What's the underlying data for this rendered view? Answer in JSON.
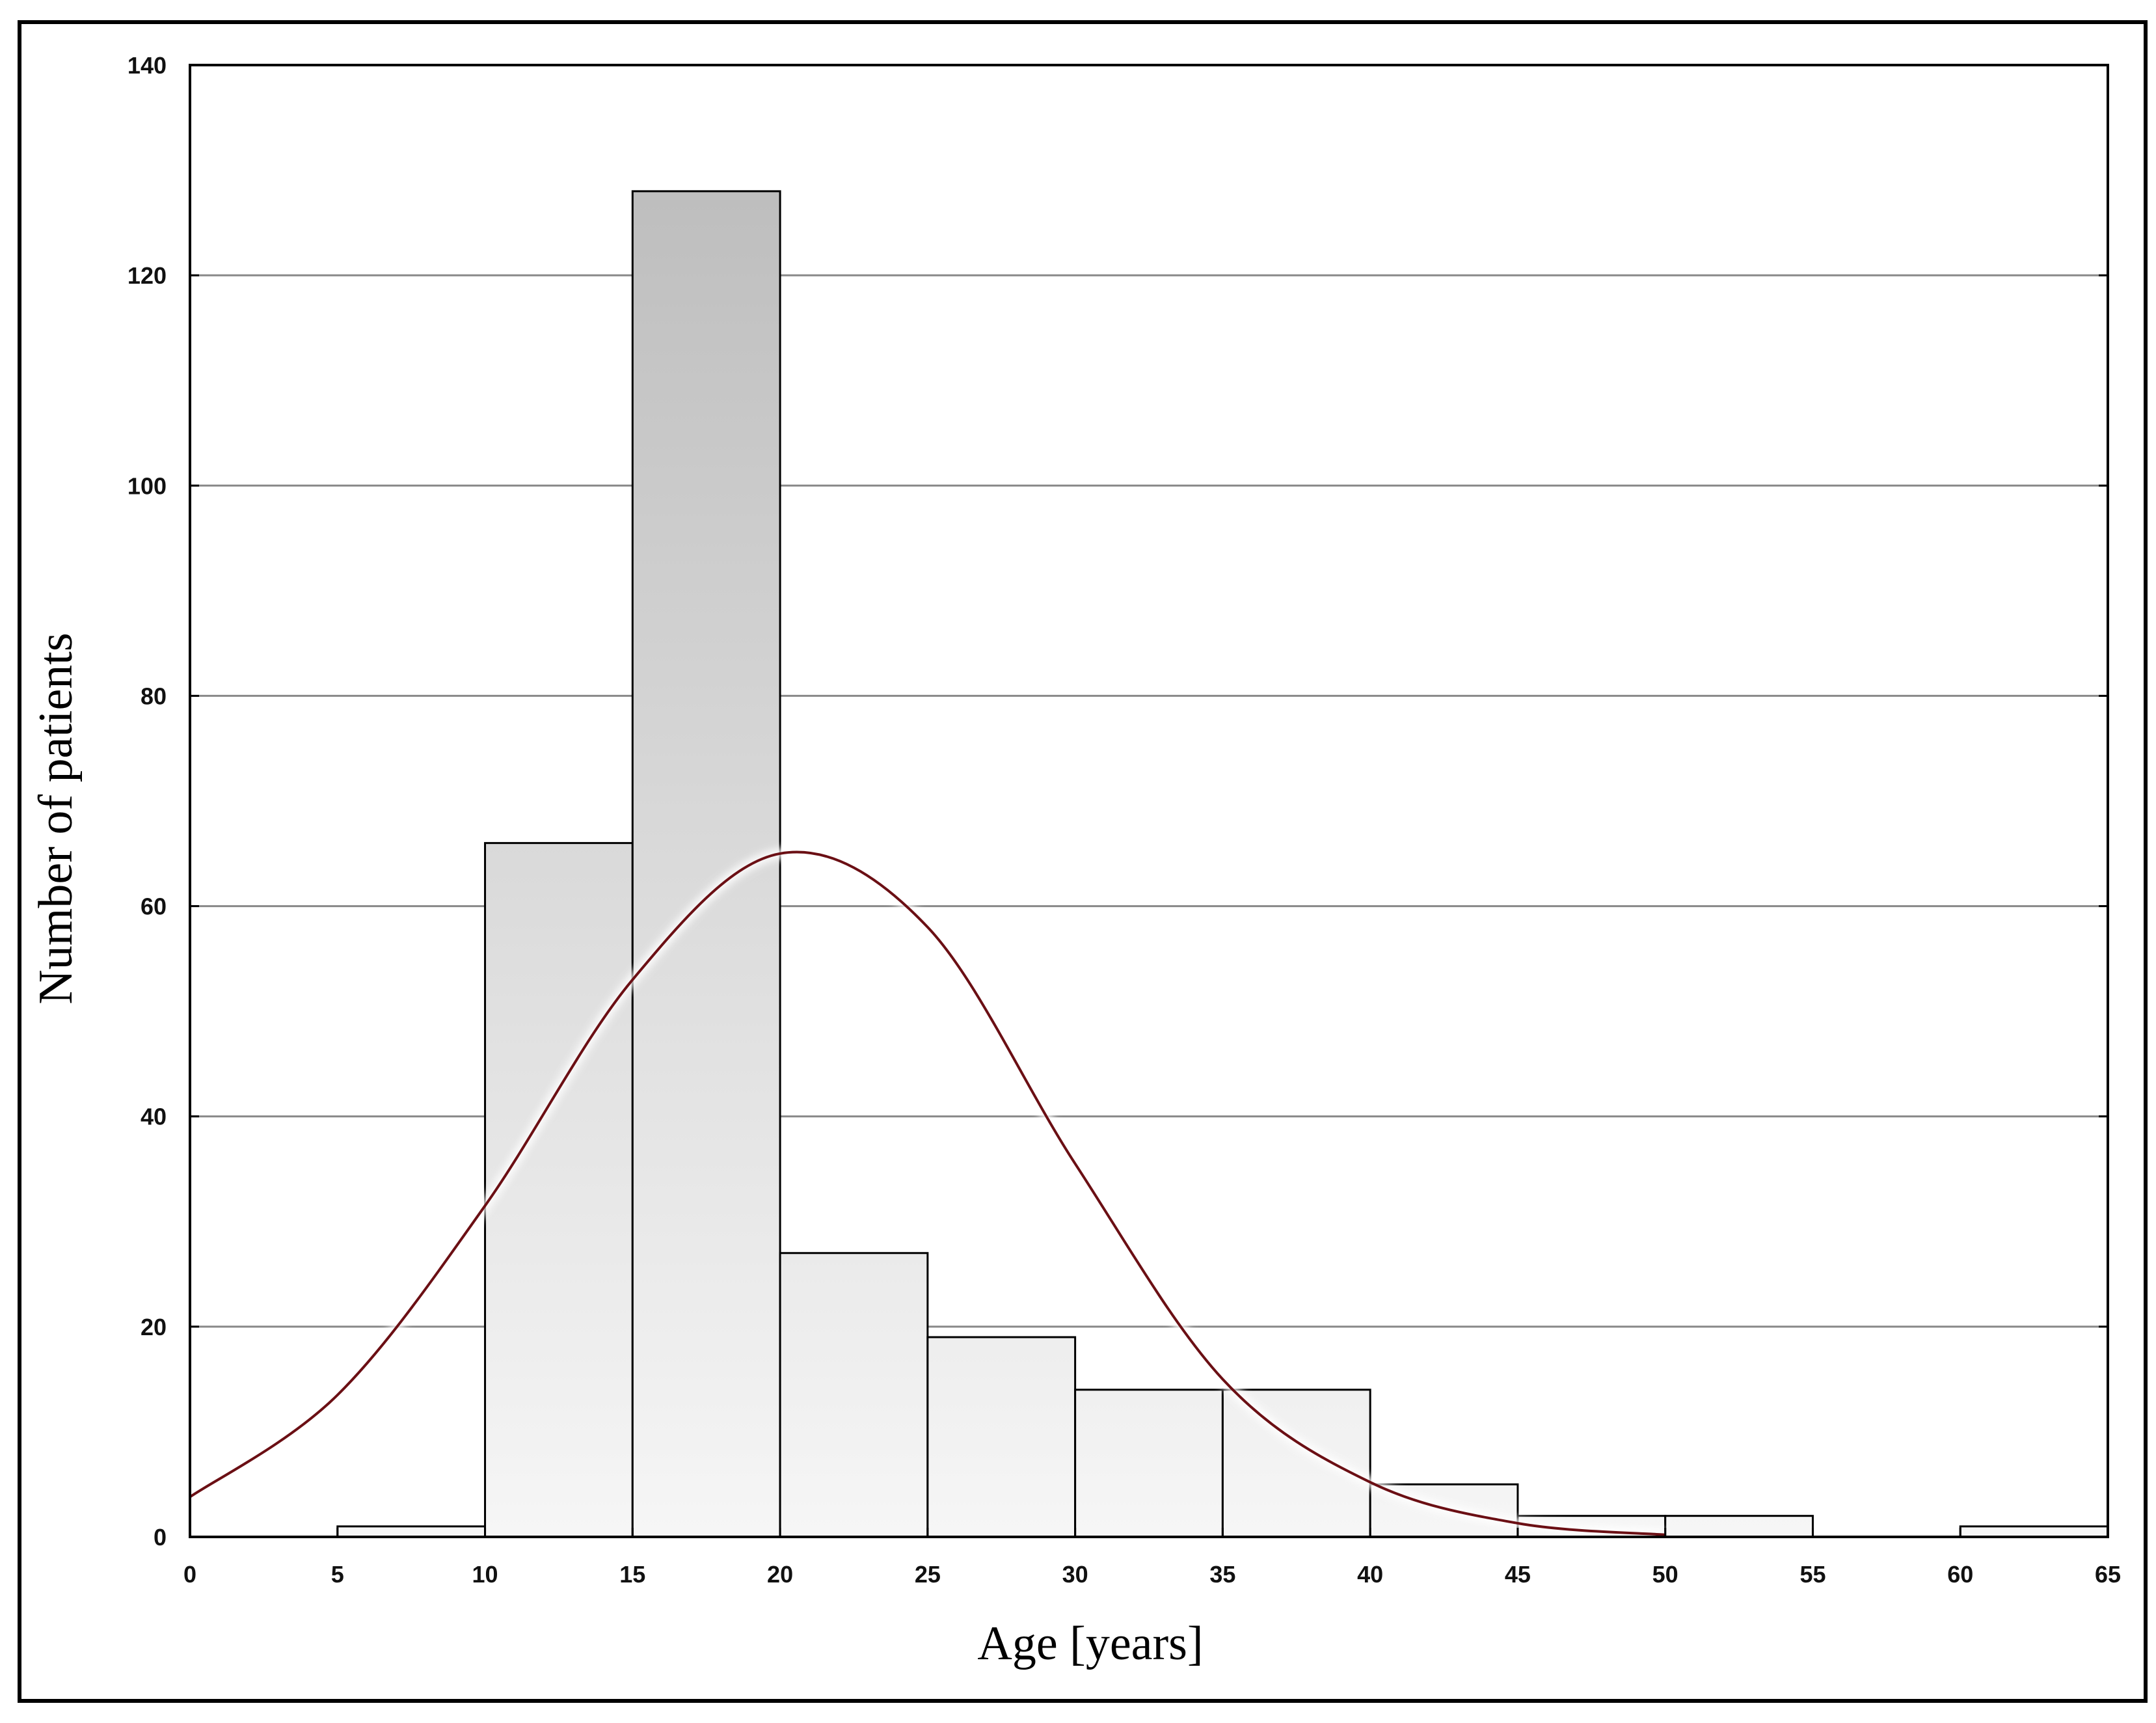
{
  "chart_data": {
    "type": "bar",
    "subtype": "histogram",
    "title": "",
    "xlabel": "Age [years]",
    "ylabel": "Number of patients",
    "xlim": [
      0,
      65
    ],
    "ylim": [
      0,
      140
    ],
    "x_ticks": [
      "0",
      "5",
      "10",
      "15",
      "20",
      "25",
      "30",
      "35",
      "40",
      "45",
      "50",
      "55",
      "60",
      "65"
    ],
    "y_ticks": [
      "0",
      "20",
      "40",
      "60",
      "80",
      "100",
      "120",
      "140"
    ],
    "bins": [
      {
        "from": 5,
        "to": 10,
        "value": 1
      },
      {
        "from": 10,
        "to": 15,
        "value": 66
      },
      {
        "from": 15,
        "to": 20,
        "value": 128
      },
      {
        "from": 20,
        "to": 25,
        "value": 27
      },
      {
        "from": 25,
        "to": 30,
        "value": 19
      },
      {
        "from": 30,
        "to": 35,
        "value": 14
      },
      {
        "from": 35,
        "to": 40,
        "value": 14
      },
      {
        "from": 40,
        "to": 45,
        "value": 5
      },
      {
        "from": 45,
        "to": 50,
        "value": 2
      },
      {
        "from": 50,
        "to": 55,
        "value": 2
      },
      {
        "from": 55,
        "to": 60,
        "value": 0
      },
      {
        "from": 60,
        "to": 65,
        "value": 1
      }
    ],
    "fitted_curve": {
      "type": "normal",
      "peak_x": 20.6,
      "peak_y": 65.2,
      "points": [
        [
          0,
          3.8
        ],
        [
          5,
          13.5
        ],
        [
          10,
          31.5
        ],
        [
          15,
          53
        ],
        [
          20,
          65
        ],
        [
          25,
          58
        ],
        [
          30,
          35.5
        ],
        [
          35,
          15
        ],
        [
          40,
          5.2
        ],
        [
          45,
          1.3
        ],
        [
          50,
          0.2
        ]
      ],
      "color": "#6b0f14"
    },
    "grid": {
      "horizontal": true,
      "vertical": false
    },
    "colors": {
      "bar_top": "#bdbdbd",
      "bar_bottom": "#f6f6f6",
      "bar_stroke": "#000000",
      "gridline": "#888888",
      "frame": "#000000"
    }
  }
}
